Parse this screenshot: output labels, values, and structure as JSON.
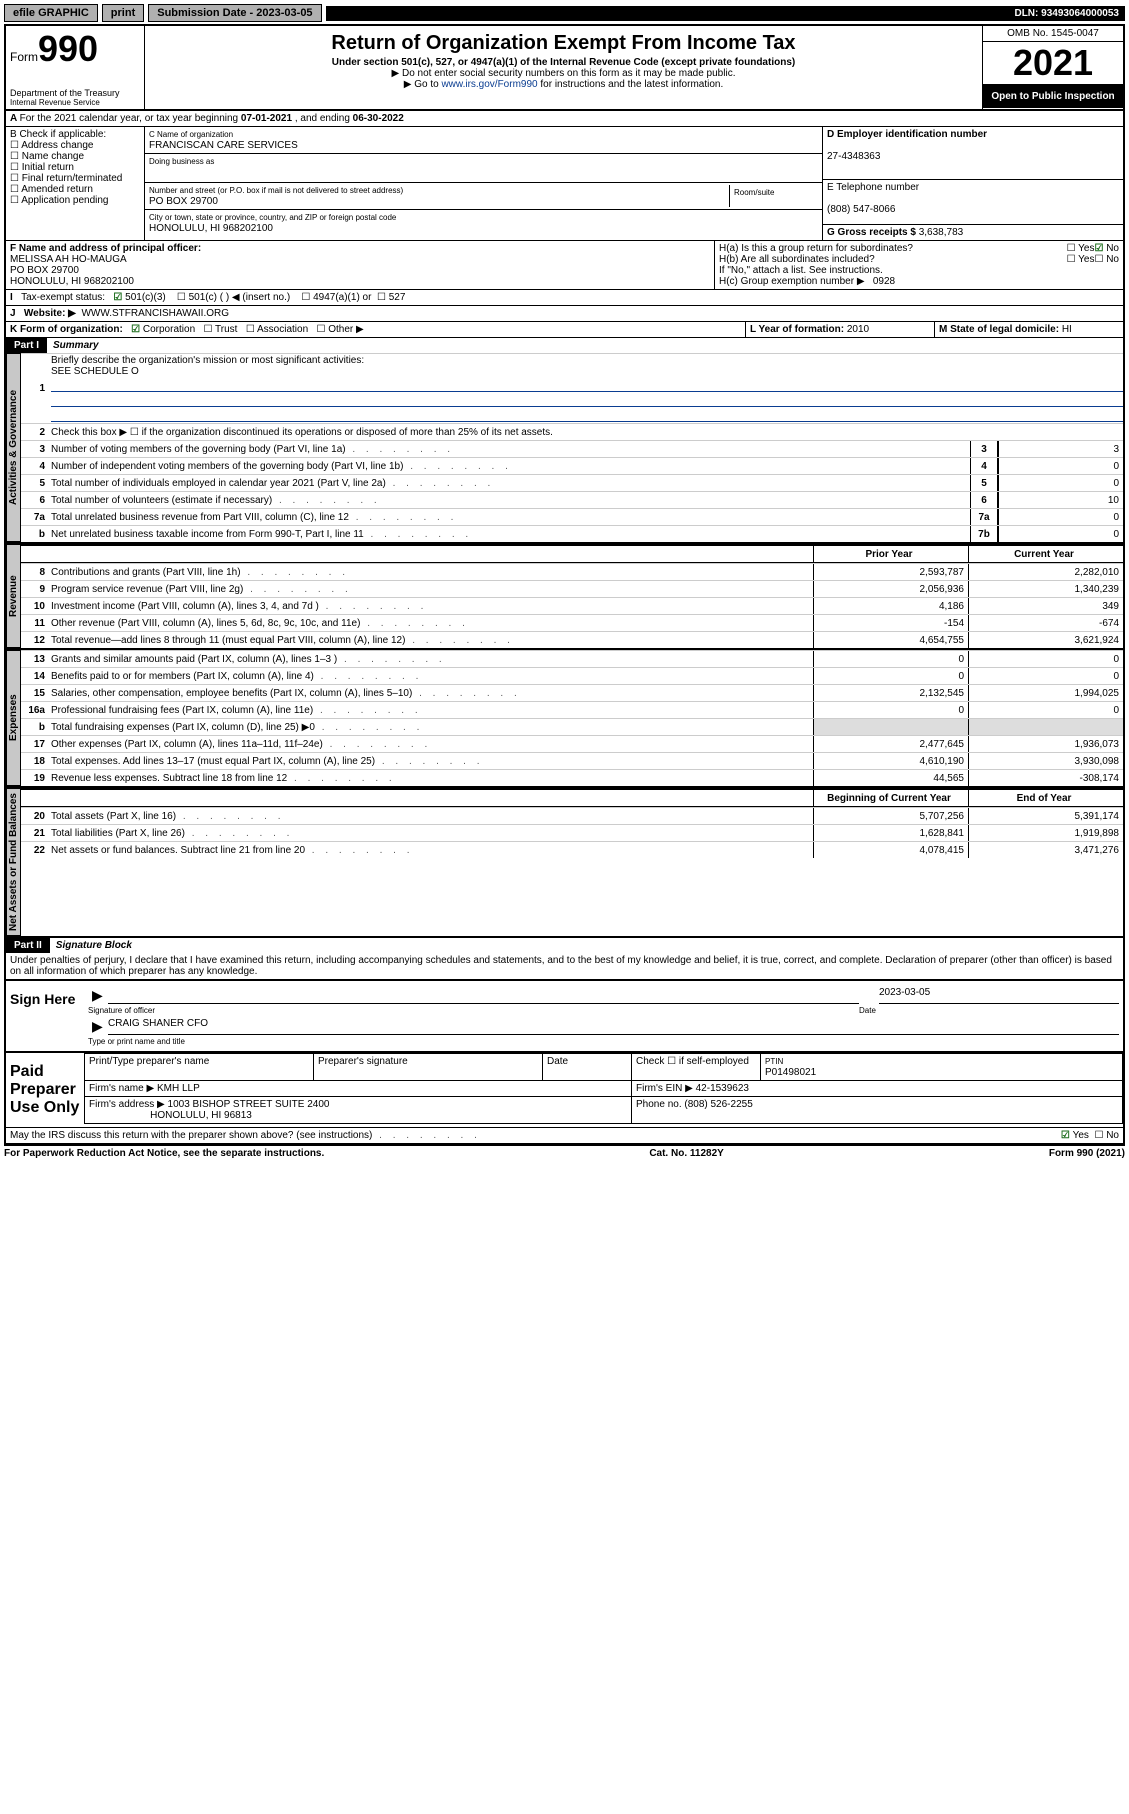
{
  "topbar": {
    "efile": "efile GRAPHIC",
    "print": "print",
    "sub_label": "Submission Date - ",
    "sub_date": "2023-03-05",
    "dln": "DLN: 93493064000053"
  },
  "header": {
    "form_prefix": "Form",
    "form_no": "990",
    "dept": "Department of the Treasury",
    "irs": "Internal Revenue Service",
    "title": "Return of Organization Exempt From Income Tax",
    "sub1": "Under section 501(c), 527, or 4947(a)(1) of the Internal Revenue Code (except private foundations)",
    "sub2": "▶ Do not enter social security numbers on this form as it may be made public.",
    "sub3_pre": "▶ Go to ",
    "sub3_link": "www.irs.gov/Form990",
    "sub3_post": " for instructions and the latest information.",
    "omb": "OMB No. 1545-0047",
    "year": "2021",
    "open": "Open to Public Inspection"
  },
  "A": {
    "text": "For the 2021 calendar year, or tax year beginning ",
    "begin": "07-01-2021",
    "mid": " , and ending ",
    "end": "06-30-2022"
  },
  "B": {
    "label": "B Check if applicable:",
    "items": [
      "Address change",
      "Name change",
      "Initial return",
      "Final return/terminated",
      "Amended return",
      "Application pending"
    ]
  },
  "C": {
    "label": "C Name of organization",
    "name": "FRANCISCAN CARE SERVICES",
    "dba_label": "Doing business as",
    "addr_label": "Number and street (or P.O. box if mail is not delivered to street address)",
    "room": "Room/suite",
    "addr": "PO BOX 29700",
    "city_label": "City or town, state or province, country, and ZIP or foreign postal code",
    "city": "HONOLULU, HI  968202100"
  },
  "D": {
    "label": "D Employer identification number",
    "val": "27-4348363"
  },
  "E": {
    "label": "E Telephone number",
    "val": "(808) 547-8066"
  },
  "G": {
    "label": "G Gross receipts $ ",
    "val": "3,638,783"
  },
  "F": {
    "label": "F Name and address of principal officer:",
    "name": "MELISSA AH HO-MAUGA",
    "addr1": "PO BOX 29700",
    "addr2": "HONOLULU, HI  968202100"
  },
  "H": {
    "a": "H(a)  Is this a group return for subordinates?",
    "b": "H(b)  Are all subordinates included?",
    "b2": "If \"No,\" attach a list. See instructions.",
    "c": "H(c)  Group exemption number ▶",
    "c_val": "0928",
    "yes": "Yes",
    "no": "No"
  },
  "I": {
    "label": "Tax-exempt status:",
    "opts": [
      "501(c)(3)",
      "501(c) (   ) ◀ (insert no.)",
      "4947(a)(1) or",
      "527"
    ]
  },
  "J": {
    "label": "Website: ▶",
    "val": "WWW.STFRANCISHAWAII.ORG"
  },
  "K": {
    "label": "K Form of organization:",
    "opts": [
      "Corporation",
      "Trust",
      "Association",
      "Other ▶"
    ]
  },
  "L": {
    "label": "L Year of formation: ",
    "val": "2010"
  },
  "M": {
    "label": "M State of legal domicile: ",
    "val": "HI"
  },
  "part1": {
    "hdr": "Part I",
    "title": "Summary",
    "l1": "Briefly describe the organization's mission or most significant activities:",
    "l1v": "SEE SCHEDULE O",
    "l2": "Check this box ▶ ☐  if the organization discontinued its operations or disposed of more than 25% of its net assets.",
    "lines_gov": [
      {
        "n": "3",
        "d": "Number of voting members of the governing body (Part VI, line 1a)",
        "box": "3",
        "v": "3"
      },
      {
        "n": "4",
        "d": "Number of independent voting members of the governing body (Part VI, line 1b)",
        "box": "4",
        "v": "0"
      },
      {
        "n": "5",
        "d": "Total number of individuals employed in calendar year 2021 (Part V, line 2a)",
        "box": "5",
        "v": "0"
      },
      {
        "n": "6",
        "d": "Total number of volunteers (estimate if necessary)",
        "box": "6",
        "v": "10"
      },
      {
        "n": "7a",
        "d": "Total unrelated business revenue from Part VIII, column (C), line 12",
        "box": "7a",
        "v": "0"
      },
      {
        "n": "b",
        "d": "Net unrelated business taxable income from Form 990-T, Part I, line 11",
        "box": "7b",
        "v": "0"
      }
    ],
    "col_prior": "Prior Year",
    "col_curr": "Current Year",
    "rev": [
      {
        "n": "8",
        "d": "Contributions and grants (Part VIII, line 1h)",
        "p": "2,593,787",
        "c": "2,282,010"
      },
      {
        "n": "9",
        "d": "Program service revenue (Part VIII, line 2g)",
        "p": "2,056,936",
        "c": "1,340,239"
      },
      {
        "n": "10",
        "d": "Investment income (Part VIII, column (A), lines 3, 4, and 7d )",
        "p": "4,186",
        "c": "349"
      },
      {
        "n": "11",
        "d": "Other revenue (Part VIII, column (A), lines 5, 6d, 8c, 9c, 10c, and 11e)",
        "p": "-154",
        "c": "-674"
      },
      {
        "n": "12",
        "d": "Total revenue—add lines 8 through 11 (must equal Part VIII, column (A), line 12)",
        "p": "4,654,755",
        "c": "3,621,924"
      }
    ],
    "exp": [
      {
        "n": "13",
        "d": "Grants and similar amounts paid (Part IX, column (A), lines 1–3 )",
        "p": "0",
        "c": "0"
      },
      {
        "n": "14",
        "d": "Benefits paid to or for members (Part IX, column (A), line 4)",
        "p": "0",
        "c": "0"
      },
      {
        "n": "15",
        "d": "Salaries, other compensation, employee benefits (Part IX, column (A), lines 5–10)",
        "p": "2,132,545",
        "c": "1,994,025"
      },
      {
        "n": "16a",
        "d": "Professional fundraising fees (Part IX, column (A), line 11e)",
        "p": "0",
        "c": "0"
      },
      {
        "n": "b",
        "d": "Total fundraising expenses (Part IX, column (D), line 25) ▶0",
        "p": "",
        "c": "",
        "shade": true
      },
      {
        "n": "17",
        "d": "Other expenses (Part IX, column (A), lines 11a–11d, 11f–24e)",
        "p": "2,477,645",
        "c": "1,936,073"
      },
      {
        "n": "18",
        "d": "Total expenses. Add lines 13–17 (must equal Part IX, column (A), line 25)",
        "p": "4,610,190",
        "c": "3,930,098"
      },
      {
        "n": "19",
        "d": "Revenue less expenses. Subtract line 18 from line 12",
        "p": "44,565",
        "c": "-308,174"
      }
    ],
    "col_beg": "Beginning of Current Year",
    "col_end": "End of Year",
    "net": [
      {
        "n": "20",
        "d": "Total assets (Part X, line 16)",
        "p": "5,707,256",
        "c": "5,391,174"
      },
      {
        "n": "21",
        "d": "Total liabilities (Part X, line 26)",
        "p": "1,628,841",
        "c": "1,919,898"
      },
      {
        "n": "22",
        "d": "Net assets or fund balances. Subtract line 21 from line 20",
        "p": "4,078,415",
        "c": "3,471,276"
      }
    ],
    "tab_gov": "Activities & Governance",
    "tab_rev": "Revenue",
    "tab_exp": "Expenses",
    "tab_net": "Net Assets or Fund Balances"
  },
  "part2": {
    "hdr": "Part II",
    "title": "Signature Block",
    "decl": "Under penalties of perjury, I declare that I have examined this return, including accompanying schedules and statements, and to the best of my knowledge and belief, it is true, correct, and complete. Declaration of preparer (other than officer) is based on all information of which preparer has any knowledge.",
    "sign_here": "Sign Here",
    "sig_officer": "Signature of officer",
    "date": "Date",
    "sig_date": "2023-03-05",
    "name_title": "CRAIG SHANER  CFO",
    "name_label": "Type or print name and title",
    "paid": "Paid Preparer Use Only",
    "prep_name": "Print/Type preparer's name",
    "prep_sig": "Preparer's signature",
    "prep_date": "Date",
    "check_se": "Check ☐ if self-employed",
    "ptin_l": "PTIN",
    "ptin": "P01498021",
    "firm_name_l": "Firm's name    ▶",
    "firm_name": "KMH LLP",
    "firm_ein_l": "Firm's EIN ▶",
    "firm_ein": "42-1539623",
    "firm_addr_l": "Firm's address ▶",
    "firm_addr1": "1003 BISHOP STREET SUITE 2400",
    "firm_addr2": "HONOLULU, HI  96813",
    "phone_l": "Phone no. ",
    "phone": "(808) 526-2255",
    "discuss": "May the IRS discuss this return with the preparer shown above? (see instructions)"
  },
  "footer": {
    "l": "For Paperwork Reduction Act Notice, see the separate instructions.",
    "c": "Cat. No. 11282Y",
    "r": "Form 990 (2021)"
  }
}
